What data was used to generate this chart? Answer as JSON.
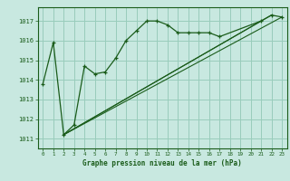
{
  "title": "Graphe pression niveau de la mer (hPa)",
  "bg_color": "#c8e8e0",
  "grid_color": "#99ccbb",
  "line_color": "#1a5c1a",
  "marker_color": "#1a5c1a",
  "xlim": [
    -0.5,
    23.5
  ],
  "ylim": [
    1010.5,
    1017.7
  ],
  "yticks": [
    1011,
    1012,
    1013,
    1014,
    1015,
    1016,
    1017
  ],
  "xticks": [
    0,
    1,
    2,
    3,
    4,
    5,
    6,
    7,
    8,
    9,
    10,
    11,
    12,
    13,
    14,
    15,
    16,
    17,
    18,
    19,
    20,
    21,
    22,
    23
  ],
  "series": [
    {
      "x": [
        0,
        1,
        2,
        3,
        4,
        5,
        6,
        7,
        8,
        9,
        10,
        11,
        12,
        13,
        14,
        15,
        16,
        17,
        21,
        22,
        23
      ],
      "y": [
        1013.8,
        1015.9,
        1011.2,
        1011.7,
        1014.7,
        1014.3,
        1014.4,
        1015.1,
        1016.0,
        1016.5,
        1017.0,
        1017.0,
        1016.8,
        1016.4,
        1016.4,
        1016.4,
        1016.4,
        1016.2,
        1017.0,
        1017.3,
        1017.2
      ],
      "has_markers": true
    },
    {
      "x": [
        2,
        23
      ],
      "y": [
        1011.2,
        1017.2
      ],
      "has_markers": false
    },
    {
      "x": [
        2,
        21
      ],
      "y": [
        1011.2,
        1017.0
      ],
      "has_markers": false
    },
    {
      "x": [
        2,
        22
      ],
      "y": [
        1011.2,
        1017.3
      ],
      "has_markers": false
    }
  ]
}
